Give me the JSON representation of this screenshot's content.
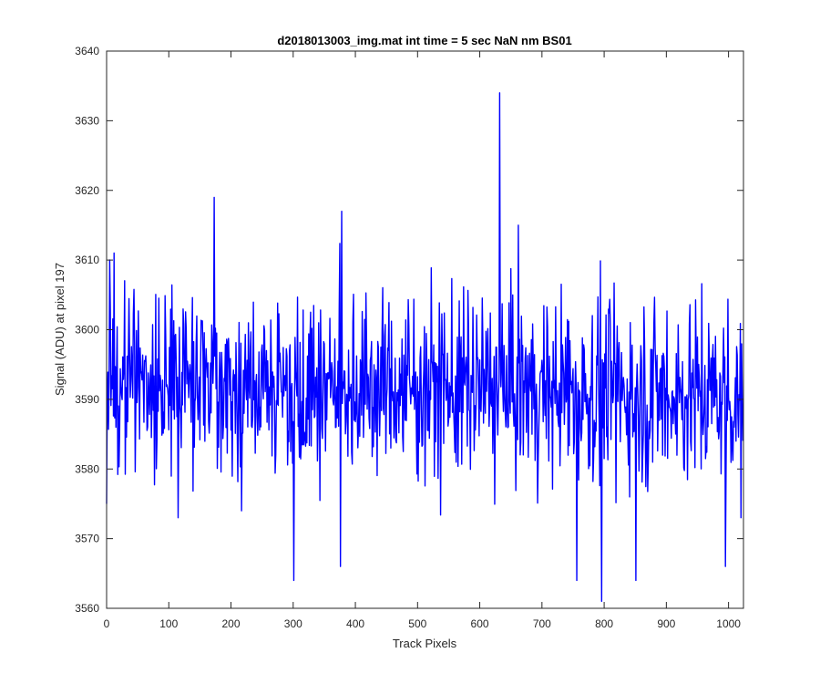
{
  "chart_data": {
    "type": "line",
    "title": "d2018013003_img.mat int time = 5 sec  NaN nm BS01",
    "xlabel": "Track Pixels",
    "ylabel": "Signal (ADU) at pixel 197",
    "xlim": [
      0,
      1024
    ],
    "ylim": [
      3560,
      3640
    ],
    "x_ticks": [
      0,
      100,
      200,
      300,
      400,
      500,
      600,
      700,
      800,
      900,
      1000
    ],
    "y_ticks": [
      3560,
      3570,
      3580,
      3590,
      3600,
      3610,
      3620,
      3630,
      3640
    ],
    "grid": false,
    "line_color": "#0000ff",
    "axis_color": "#262626",
    "series_mean": 3591,
    "series_points_count": 1024,
    "notable_points": [
      {
        "x": 0,
        "y": 3575
      },
      {
        "x": 5,
        "y": 3610
      },
      {
        "x": 12,
        "y": 3611
      },
      {
        "x": 115,
        "y": 3573
      },
      {
        "x": 173,
        "y": 3619
      },
      {
        "x": 217,
        "y": 3574
      },
      {
        "x": 301,
        "y": 3564
      },
      {
        "x": 376,
        "y": 3566
      },
      {
        "x": 378,
        "y": 3617
      },
      {
        "x": 632,
        "y": 3634
      },
      {
        "x": 662,
        "y": 3615
      },
      {
        "x": 756,
        "y": 3564
      },
      {
        "x": 796,
        "y": 3561
      },
      {
        "x": 851,
        "y": 3564
      },
      {
        "x": 995,
        "y": 3566
      },
      {
        "x": 1020,
        "y": 3573
      }
    ]
  }
}
